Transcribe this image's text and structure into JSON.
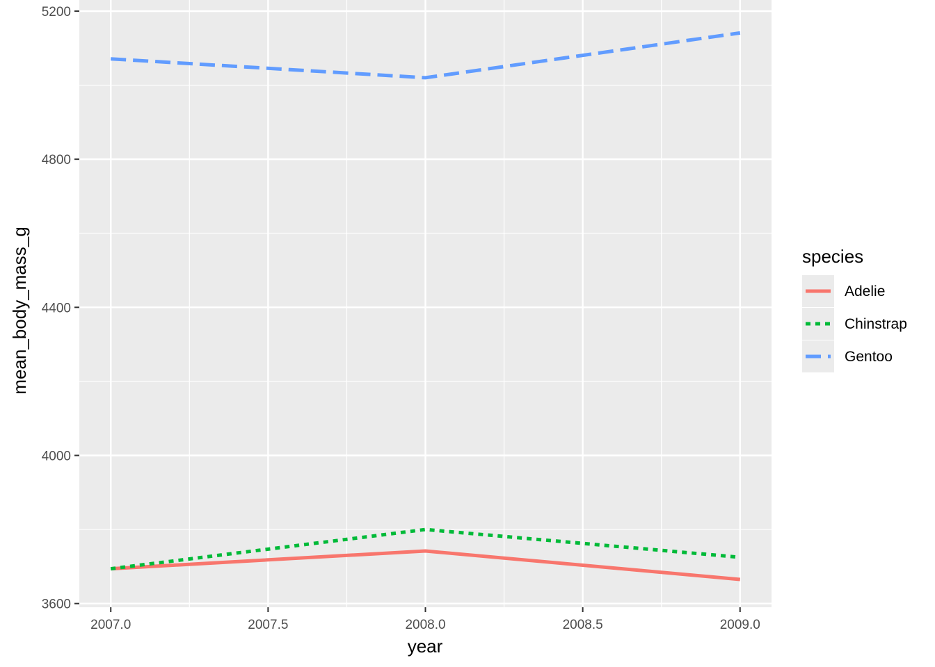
{
  "chart_data": {
    "type": "line",
    "xlabel": "year",
    "ylabel": "mean_body_mass_g",
    "x": [
      2007,
      2008,
      2009
    ],
    "xlim": [
      2006.9,
      2009.1
    ],
    "ylim": [
      3590,
      5230
    ],
    "xticks": [
      2007.0,
      2007.5,
      2008.0,
      2008.5,
      2009.0
    ],
    "xtick_labels": [
      "2007.0",
      "2007.5",
      "2008.0",
      "2008.5",
      "2009.0"
    ],
    "yticks": [
      3600,
      4000,
      4400,
      4800,
      5200
    ],
    "ytick_labels": [
      "3600",
      "4000",
      "4400",
      "4800",
      "5200"
    ],
    "grid": true,
    "background": "#ebebeb",
    "legend": {
      "title": "species",
      "placement": "right"
    },
    "series": [
      {
        "name": "Adelie",
        "values": [
          3694,
          3742,
          3665
        ],
        "color": "#f8766d",
        "dash": "solid"
      },
      {
        "name": "Chinstrap",
        "values": [
          3694,
          3800,
          3725
        ],
        "color": "#00ba38",
        "dash": "dotted"
      },
      {
        "name": "Gentoo",
        "values": [
          5071,
          5020,
          5141
        ],
        "color": "#619cff",
        "dash": "dashed"
      }
    ]
  }
}
